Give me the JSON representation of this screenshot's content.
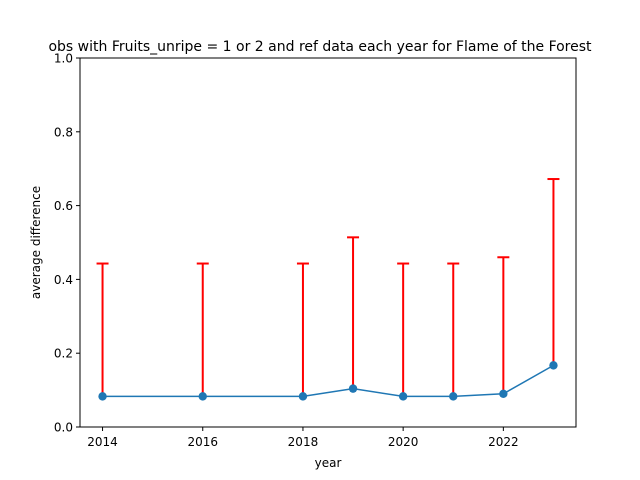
{
  "chart_data": {
    "type": "line",
    "title": "obs with Fruits_unripe = 1 or 2 and ref data each year for Flame of the Forest",
    "xlabel": "year",
    "ylabel": "average difference",
    "xlim": [
      2013.55,
      2023.45
    ],
    "ylim": [
      0,
      1.0
    ],
    "xticks": [
      2014,
      2016,
      2018,
      2020,
      2022
    ],
    "yticks": [
      0.0,
      0.2,
      0.4,
      0.6,
      0.8,
      1.0
    ],
    "xtick_labels": [
      "2014",
      "2016",
      "2018",
      "2020",
      "2022"
    ],
    "ytick_labels": [
      "0.0",
      "0.2",
      "0.4",
      "0.6",
      "0.8",
      "1.0"
    ],
    "grid": false,
    "series": [
      {
        "x": [
          2014,
          2016,
          2018,
          2019,
          2020,
          2021,
          2022,
          2023
        ],
        "y": [
          0.083,
          0.083,
          0.083,
          0.104,
          0.083,
          0.083,
          0.09,
          0.167
        ],
        "error_upper": [
          0.36,
          0.36,
          0.36,
          0.41,
          0.36,
          0.36,
          0.37,
          0.505
        ],
        "error_lower": [
          0,
          0,
          0,
          0,
          0,
          0,
          0,
          0
        ],
        "color": "#1f77b4",
        "error_color": "#ff0000",
        "marker": "circle"
      }
    ]
  }
}
